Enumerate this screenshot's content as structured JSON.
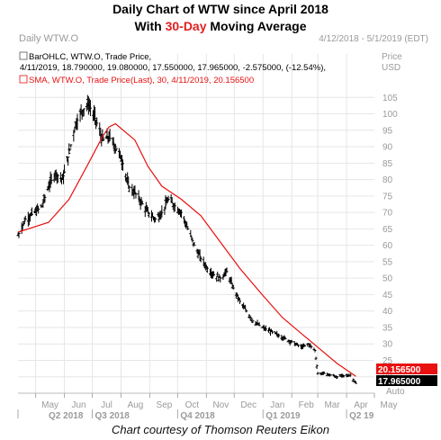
{
  "title": {
    "line1": "Daily Chart of WTW since April 2018",
    "line2_prefix": "With ",
    "line2_highlight": "30-Day",
    "line2_suffix": " Moving Average"
  },
  "caption": "Chart courtesy of Thomson Reuters Eikon",
  "header": {
    "left": "Daily WTW.O",
    "right": "4/12/2018 - 5/1/2019 (EDT)",
    "price_label": "Price",
    "currency": "USD",
    "auto_label": "Auto"
  },
  "legend": {
    "ohlc_line1": "BarOHLC, WTW.O, Trade Price,",
    "ohlc_line2": "4/11/2019, 18.790000, 19.080000, 17.550000, 17.965000, -2.575000, (-12.54%),",
    "sma_line": "SMA, WTW.O, Trade Price(Last),  30,  4/11/2019, 20.156500"
  },
  "colors": {
    "price_bars": "#000000",
    "sma": "#e81010",
    "grid": "#e6e6e6",
    "axis_text": "#9a9a9a",
    "sma_tag_bg": "#e81010",
    "price_tag_bg": "#000000"
  },
  "chart_data": {
    "type": "line",
    "x_axis": "date",
    "xlim": [
      "2018-04-12",
      "2019-05-01"
    ],
    "ylim": [
      15,
      110
    ],
    "yticks": [
      20,
      25,
      30,
      35,
      40,
      45,
      50,
      55,
      60,
      65,
      70,
      75,
      80,
      85,
      90,
      95,
      100,
      105
    ],
    "ytick_labels": [
      "20",
      "25",
      "30",
      "35",
      "40",
      "45",
      "50",
      "55",
      "60",
      "65",
      "70",
      "75",
      "80",
      "85",
      "90",
      "95",
      "100",
      "105"
    ],
    "month_labels": [
      "May",
      "Jun",
      "Jul",
      "Aug",
      "Sep",
      "Oct",
      "Nov",
      "Dec",
      "Jan",
      "Feb",
      "Mar",
      "Apr",
      "May"
    ],
    "quarter_labels": [
      "Q2 2018",
      "Q3 2018",
      "Q4 2018",
      "Q1 2019",
      "Q2 19"
    ],
    "grid": true,
    "series": [
      {
        "style": "ohlc_bars",
        "x": [
          "2018-04-12",
          "2018-04-20",
          "2018-04-30",
          "2018-05-08",
          "2018-05-15",
          "2018-05-22",
          "2018-05-30",
          "2018-06-06",
          "2018-06-13",
          "2018-06-20",
          "2018-06-27",
          "2018-07-05",
          "2018-07-12",
          "2018-07-19",
          "2018-07-26",
          "2018-08-02",
          "2018-08-09",
          "2018-08-16",
          "2018-08-23",
          "2018-08-30",
          "2018-09-07",
          "2018-09-14",
          "2018-09-21",
          "2018-09-28",
          "2018-10-05",
          "2018-10-12",
          "2018-10-19",
          "2018-10-26",
          "2018-11-02",
          "2018-11-09",
          "2018-11-16",
          "2018-11-23",
          "2018-11-30",
          "2018-12-07",
          "2018-12-14",
          "2018-12-21",
          "2018-12-31",
          "2019-01-08",
          "2019-01-15",
          "2019-01-22",
          "2019-01-29",
          "2019-02-05",
          "2019-02-12",
          "2019-02-19",
          "2019-02-26",
          "2019-03-01",
          "2019-03-08",
          "2019-03-15",
          "2019-03-22",
          "2019-03-29",
          "2019-04-05",
          "2019-04-11"
        ],
        "close": [
          63,
          68,
          70,
          72,
          78,
          82,
          80,
          88,
          97,
          101,
          103,
          98,
          92,
          93,
          90,
          86,
          78,
          76,
          73,
          70,
          68,
          70,
          74,
          72,
          70,
          65,
          60,
          56,
          53,
          51,
          50,
          52,
          47,
          43,
          40,
          37,
          35,
          34,
          33,
          32,
          31,
          30,
          29,
          30,
          28,
          21,
          21,
          20.5,
          20,
          20.3,
          20.5,
          17.965
        ]
      },
      {
        "name": "SMA, WTW.O, Trade Price(Last), 30",
        "style": "line",
        "x": [
          "2018-04-12",
          "2018-05-15",
          "2018-06-06",
          "2018-06-27",
          "2018-07-12",
          "2018-07-19",
          "2018-07-26",
          "2018-08-16",
          "2018-08-30",
          "2018-09-14",
          "2018-10-05",
          "2018-10-26",
          "2018-11-16",
          "2018-12-07",
          "2018-12-31",
          "2019-01-22",
          "2019-02-12",
          "2019-03-01",
          "2019-03-22",
          "2019-04-11"
        ],
        "y": [
          64,
          67,
          74,
          85,
          93,
          96,
          97,
          92,
          84,
          78,
          74,
          69,
          61,
          53,
          45,
          38,
          33,
          29,
          24,
          20.1565
        ]
      }
    ],
    "last_values": {
      "sma": "20.156500",
      "price": "17.965000"
    }
  }
}
